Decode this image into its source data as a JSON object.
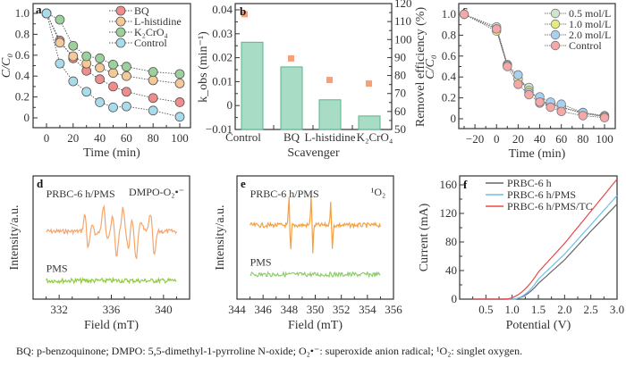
{
  "caption": "BQ: p-benzoquinone; DMPO: 5,5-dimethyl-1-pyrroline N-oxide; O₂•⁻: superoxide anion radical; ¹O₂: singlet oxygen.",
  "chart_data": [
    {
      "panel": "a",
      "type": "line",
      "xlabel": "Time (min)",
      "ylabel": "C/C₀",
      "xlim": [
        -10,
        108
      ],
      "ylim": [
        -0.1,
        1.05
      ],
      "xticks": [
        0,
        20,
        40,
        60,
        80,
        100
      ],
      "yticks": [
        0,
        0.2,
        0.4,
        0.6,
        0.8,
        1.0
      ],
      "ytick_labels": [
        "0",
        "0.2",
        "0.4",
        "0.6",
        "0.8",
        "1.0"
      ],
      "legend_position": "top-right",
      "x": [
        0,
        10,
        20,
        30,
        40,
        50,
        60,
        80,
        100
      ],
      "series": [
        {
          "name": "BQ",
          "color": "#f08c8c",
          "values": [
            1.0,
            0.74,
            0.57,
            0.45,
            0.37,
            0.3,
            0.25,
            0.19,
            0.15
          ]
        },
        {
          "name": "L-histidine",
          "color": "#f5c898",
          "values": [
            1.0,
            0.72,
            0.59,
            0.52,
            0.48,
            0.43,
            0.4,
            0.36,
            0.33
          ]
        },
        {
          "name": "K₂CrO₄",
          "color": "#9cd09c",
          "values": [
            1.0,
            0.94,
            0.69,
            0.59,
            0.57,
            0.51,
            0.49,
            0.44,
            0.42
          ]
        },
        {
          "name": "Control",
          "color": "#a8dceb",
          "values": [
            1.0,
            0.52,
            0.35,
            0.25,
            0.15,
            0.1,
            0.11,
            0.07,
            0.01
          ]
        }
      ]
    },
    {
      "panel": "b",
      "type": "bar",
      "xlabel": "Scavenger",
      "ylabel_left": "k_obs (min⁻¹)",
      "ylabel_right": "Removel efficiency (%)",
      "categories": [
        "Control",
        "BQ",
        "L-histidine",
        "K₂CrO₄"
      ],
      "ylim_left": [
        -0.01,
        0.042
      ],
      "yticks_left": [
        -0.01,
        0,
        0.01,
        0.02,
        0.03,
        0.04
      ],
      "ytick_labels_left": [
        "−0.01",
        "0",
        "0.01",
        "0.02",
        "0.03",
        "0.04"
      ],
      "ylim_right": [
        50,
        120
      ],
      "yticks_right": [
        50,
        60,
        70,
        80,
        90,
        100,
        110,
        120
      ],
      "left_axis_color": "#f0961e",
      "series": [
        {
          "name": "Removal efficiency",
          "kind": "bar",
          "axis": "right",
          "color": "#a8dcc4",
          "edge": "#5ab48c",
          "values": [
            98.5,
            84.8,
            66.5,
            57.5
          ]
        },
        {
          "name": "k_obs",
          "kind": "square",
          "axis": "left",
          "color": "#f5a07a",
          "values": [
            0.038,
            0.0195,
            0.0105,
            0.009
          ]
        }
      ]
    },
    {
      "panel": "c",
      "type": "line",
      "xlabel": "Time (min)",
      "ylabel": "C/C₀",
      "xlim": [
        -35,
        108
      ],
      "ylim": [
        -0.1,
        1.05
      ],
      "xticks": [
        -20,
        0,
        20,
        40,
        60,
        80,
        100
      ],
      "xtick_labels": [
        "−20",
        "0",
        "20",
        "40",
        "60",
        "80",
        "100"
      ],
      "yticks": [
        0,
        0.2,
        0.4,
        0.6,
        0.8,
        1.0
      ],
      "ytick_labels": [
        "0",
        "0.2",
        "0.4",
        "0.6",
        "0.8",
        "1.0"
      ],
      "legend_position": "top-right",
      "x": [
        -30,
        0,
        10,
        20,
        30,
        40,
        50,
        60,
        80,
        100
      ],
      "series": [
        {
          "name": "0.5 mol/L",
          "color": "#d0e4d0",
          "values": [
            1.0,
            0.88,
            0.52,
            0.38,
            0.3,
            0.15,
            0.15,
            0.11,
            0.06,
            0.03
          ]
        },
        {
          "name": "1.0 mol/L",
          "color": "#e4ec80",
          "values": [
            1.0,
            0.84,
            0.51,
            0.38,
            0.27,
            0.18,
            0.14,
            0.11,
            0.05,
            0.02
          ]
        },
        {
          "name": "2.0 mol/L",
          "color": "#a8d0f0",
          "values": [
            1.0,
            0.86,
            0.51,
            0.42,
            0.25,
            0.21,
            0.16,
            0.14,
            0.06,
            0.02
          ]
        },
        {
          "name": "Control",
          "color": "#f4a8a8",
          "values": [
            1.0,
            0.86,
            0.5,
            0.33,
            0.23,
            0.16,
            0.11,
            0.07,
            0.03,
            0.01
          ]
        }
      ]
    },
    {
      "panel": "d",
      "type": "line",
      "xlabel": "Field (mT)",
      "ylabel": "Intensity/a.u.",
      "xlim": [
        330,
        342
      ],
      "xticks": [
        332,
        336,
        340
      ],
      "annotation": "DMPO-O₂•⁻",
      "series": [
        {
          "name": "PRBC-6 h/PMS",
          "color": "#f5a66e",
          "x_range": [
            331,
            341
          ],
          "baseline": 0.55,
          "peaks": [
            [
              334.0,
              0.35
            ],
            [
              334.2,
              -0.35
            ],
            [
              334.6,
              0.12
            ],
            [
              334.8,
              -0.08
            ],
            [
              335.4,
              0.45
            ],
            [
              335.7,
              -0.1
            ],
            [
              336.1,
              0.25
            ],
            [
              336.4,
              -0.45
            ],
            [
              336.9,
              0.42
            ],
            [
              337.3,
              -0.3
            ],
            [
              337.6,
              0.2
            ],
            [
              337.9,
              -0.5
            ],
            [
              338.3,
              0.18
            ],
            [
              339.0,
              0.32
            ],
            [
              339.3,
              -0.45
            ]
          ]
        },
        {
          "name": "PMS",
          "color": "#90cc40",
          "x_range": [
            331,
            341
          ],
          "baseline": 0.15
        }
      ]
    },
    {
      "panel": "e",
      "type": "line",
      "xlabel": "Field (mT)",
      "ylabel": "Intensity/a.u.",
      "xlim": [
        344,
        356
      ],
      "xticks": [
        344,
        346,
        348,
        350,
        352,
        354,
        356
      ],
      "annotation": "¹O₂",
      "series": [
        {
          "name": "PRBC-6 h/PMS",
          "color": "#f5a040",
          "x_range": [
            345,
            355
          ],
          "baseline": 0.6,
          "peaks": [
            [
              348.0,
              0.55
            ],
            [
              348.1,
              -0.55
            ],
            [
              349.7,
              0.6
            ],
            [
              349.8,
              -0.55
            ],
            [
              351.2,
              0.5
            ],
            [
              351.3,
              -0.5
            ]
          ]
        },
        {
          "name": "PMS",
          "color": "#90cc70",
          "x_range": [
            345,
            355
          ],
          "baseline": 0.2
        }
      ]
    },
    {
      "panel": "f",
      "type": "line",
      "xlabel": "Potential (V)",
      "ylabel": "Current (mA)",
      "xlim": [
        0,
        3.0
      ],
      "ylim": [
        0,
        170
      ],
      "xticks": [
        0.5,
        1.0,
        1.5,
        2.0,
        2.5,
        3.0
      ],
      "xtick_labels": [
        "0.5",
        "1.0",
        "1.5",
        "2.0",
        "2.5",
        "3.0"
      ],
      "yticks": [
        0,
        40,
        80,
        120,
        160
      ],
      "legend_position": "top-right",
      "series": [
        {
          "name": "PRBC-6 h",
          "color": "#666666",
          "onset": 1.05,
          "values_at": [
            [
              1.0,
              0
            ],
            [
              1.5,
              22
            ],
            [
              2.0,
              55
            ],
            [
              2.5,
              95
            ],
            [
              3.0,
              133
            ]
          ]
        },
        {
          "name": "PRBC-6 h/PMS",
          "color": "#6cc0e8",
          "onset": 1.0,
          "values_at": [
            [
              1.0,
              0
            ],
            [
              1.5,
              28
            ],
            [
              2.0,
              63
            ],
            [
              2.5,
              104
            ],
            [
              3.0,
              145
            ]
          ]
        },
        {
          "name": "PRBC-6 h/PMS/TC",
          "color": "#e84848",
          "onset": 0.85,
          "values_at": [
            [
              0.85,
              0
            ],
            [
              1.5,
              38
            ],
            [
              2.0,
              78
            ],
            [
              2.5,
              123
            ],
            [
              3.0,
              168
            ]
          ]
        }
      ]
    }
  ]
}
